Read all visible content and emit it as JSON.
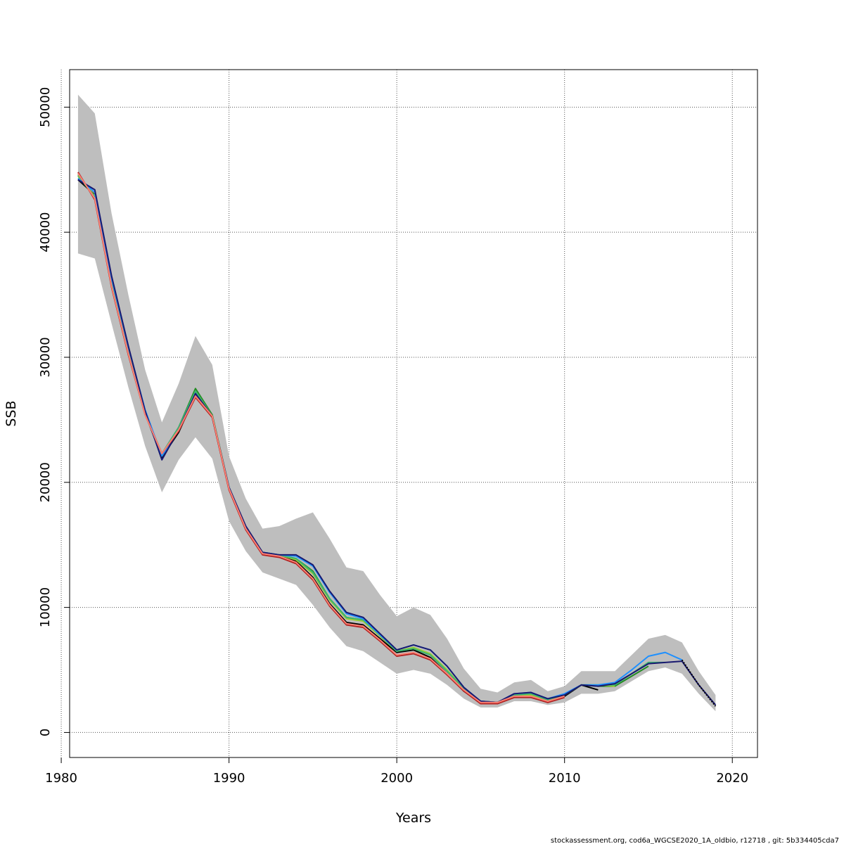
{
  "chart_data": {
    "type": "line",
    "title": "",
    "xlabel": "Years",
    "ylabel": "SSB",
    "xlim": [
      1980.5,
      2021.5
    ],
    "ylim": [
      -2000,
      53000
    ],
    "x_ticks": [
      1980,
      1990,
      2000,
      2010,
      2020
    ],
    "y_ticks": [
      0,
      10000,
      20000,
      30000,
      40000,
      50000
    ],
    "grid": true,
    "confidence_band": {
      "color": "#bebebe",
      "x": [
        1981,
        1982,
        1983,
        1984,
        1985,
        1986,
        1987,
        1988,
        1989,
        1990,
        1991,
        1992,
        1993,
        1994,
        1995,
        1996,
        1997,
        1998,
        1999,
        2000,
        2001,
        2002,
        2003,
        2004,
        2005,
        2006,
        2007,
        2008,
        2009,
        2010,
        2011,
        2012,
        2013,
        2014,
        2015,
        2016,
        2017,
        2018,
        2019
      ],
      "upper": [
        51000,
        49500,
        41500,
        35000,
        29000,
        24800,
        27900,
        31700,
        29400,
        22100,
        18700,
        16300,
        16500,
        17100,
        17600,
        15500,
        13200,
        12900,
        11000,
        9300,
        10000,
        9400,
        7500,
        5100,
        3500,
        3200,
        4000,
        4200,
        3300,
        3700,
        4900,
        4900,
        4900,
        6200,
        7500,
        7800,
        7200,
        4900,
        3000
      ],
      "lower": [
        38300,
        37900,
        32700,
        27600,
        22900,
        19200,
        21800,
        23600,
        21900,
        16900,
        14500,
        12800,
        12300,
        11800,
        10200,
        8400,
        6900,
        6500,
        5600,
        4700,
        5000,
        4700,
        3800,
        2700,
        2000,
        2000,
        2500,
        2500,
        2200,
        2400,
        3100,
        3100,
        3300,
        4100,
        4900,
        5200,
        4700,
        3100,
        1700
      ]
    },
    "series": [
      {
        "color": "#000000",
        "x": [
          1981,
          1982,
          1983,
          1984,
          1985,
          1986,
          1987,
          1988,
          1989,
          1990,
          1991,
          1992,
          1993,
          1994,
          1995,
          1996,
          1997,
          1998,
          1999,
          2000,
          2001,
          2002,
          2003,
          2004,
          2005,
          2006,
          2007,
          2008,
          2009,
          2010,
          2011,
          2012
        ],
        "values": [
          44200,
          43000,
          36000,
          30500,
          25500,
          22000,
          24000,
          27000,
          25200,
          19500,
          16300,
          14400,
          14100,
          13700,
          12400,
          10300,
          8800,
          8600,
          7500,
          6400,
          6600,
          6000,
          4700,
          3300,
          2400,
          2300,
          3000,
          3000,
          2500,
          2900,
          3800,
          3400
        ]
      },
      {
        "color": "#228b22",
        "x": [
          1981,
          1982,
          1983,
          1984,
          1985,
          1986,
          1987,
          1988,
          1989,
          1990,
          1991,
          1992,
          1993,
          1994,
          1995,
          1996,
          1997,
          1998,
          1999,
          2000,
          2001,
          2002,
          2003,
          2004,
          2005,
          2006,
          2007,
          2008,
          2009,
          2010,
          2011,
          2012,
          2013,
          2014,
          2015
        ],
        "values": [
          44500,
          42800,
          35800,
          30300,
          25500,
          22200,
          24400,
          27500,
          25400,
          19600,
          16400,
          14400,
          14200,
          13900,
          12900,
          10700,
          9200,
          9000,
          7800,
          6500,
          6700,
          6200,
          4900,
          3500,
          2500,
          2400,
          3000,
          3000,
          2600,
          3000,
          3800,
          3700,
          3700,
          4500,
          5300
        ]
      },
      {
        "color": "#9acd32",
        "x": [
          1981,
          1982,
          1983,
          1984,
          1985,
          1986,
          1987,
          1988,
          1989,
          1990,
          1991,
          1992,
          1993,
          1994,
          1995,
          1996,
          1997,
          1998,
          1999,
          2000,
          2001,
          2002,
          2003,
          2004,
          2005,
          2006,
          2007,
          2008,
          2009,
          2010,
          2011,
          2012,
          2013
        ],
        "values": [
          44500,
          42900,
          35900,
          30400,
          25600,
          22100,
          24300,
          27300,
          25300,
          19600,
          16400,
          14400,
          14200,
          13800,
          12700,
          10600,
          9100,
          8900,
          7700,
          6500,
          6800,
          6300,
          5000,
          3500,
          2500,
          2400,
          3000,
          3000,
          2600,
          3000,
          3800,
          3800,
          3700
        ]
      },
      {
        "color": "#3cb371",
        "x": [
          1981,
          1982,
          1983,
          1984,
          1985,
          1986,
          1987,
          1988,
          1989,
          1990,
          1991,
          1992,
          1993,
          1994,
          1995,
          1996,
          1997,
          1998,
          1999,
          2000,
          2001,
          2002,
          2003,
          2004,
          2005,
          2006,
          2007,
          2008,
          2009,
          2010,
          2011,
          2012,
          2013,
          2014,
          2015,
          2016
        ],
        "values": [
          44600,
          42800,
          35800,
          30300,
          25500,
          22300,
          24400,
          27300,
          25300,
          19600,
          16400,
          14400,
          14200,
          13900,
          12800,
          10700,
          9200,
          9000,
          7800,
          6500,
          6700,
          6200,
          4900,
          3500,
          2500,
          2400,
          3000,
          3100,
          2600,
          3000,
          3800,
          3800,
          3800,
          4700,
          5600,
          5600
        ]
      },
      {
        "color": "#1e90ff",
        "x": [
          1981,
          1982,
          1983,
          1984,
          1985,
          1986,
          1987,
          1988,
          1989,
          1990,
          1991,
          1992,
          1993,
          1994,
          1995,
          1996,
          1997,
          1998,
          1999,
          2000,
          2001,
          2002,
          2003,
          2004,
          2005,
          2006,
          2007,
          2008,
          2009,
          2010,
          2011,
          2012,
          2013,
          2014,
          2015,
          2016,
          2017
        ],
        "values": [
          44300,
          43200,
          36300,
          30800,
          25800,
          22100,
          24200,
          27100,
          25200,
          19600,
          16400,
          14400,
          14200,
          14100,
          13300,
          11200,
          9500,
          9100,
          7800,
          6600,
          7000,
          6600,
          5300,
          3600,
          2500,
          2400,
          3100,
          3200,
          2700,
          3100,
          3800,
          3800,
          4000,
          5000,
          6100,
          6400,
          5800
        ]
      },
      {
        "color": "#191970",
        "x": [
          1981,
          1982,
          1983,
          1984,
          1985,
          1986,
          1987,
          1988,
          1989,
          1990,
          1991,
          1992,
          1993,
          1994,
          1995,
          1996,
          1997,
          1998,
          1999,
          2000,
          2001,
          2002,
          2003,
          2004,
          2005,
          2006,
          2007,
          2008,
          2009,
          2010,
          2011,
          2012,
          2013,
          2014,
          2015,
          2016,
          2017,
          2018,
          2019
        ],
        "values": [
          44200,
          43400,
          36500,
          30900,
          25700,
          21800,
          24200,
          27100,
          25300,
          19600,
          16500,
          14400,
          14200,
          14200,
          13400,
          11300,
          9600,
          9200,
          7900,
          6600,
          7000,
          6600,
          5300,
          3600,
          2500,
          2400,
          3100,
          3200,
          2700,
          3000,
          3800,
          3700,
          3900,
          4700,
          5500,
          5600,
          5700,
          3800,
          2200
        ]
      },
      {
        "color": "#b22222",
        "x": [
          1981,
          1982,
          1983,
          1984,
          1985,
          1986,
          1987,
          1988,
          1989,
          1990,
          1991,
          1992,
          1993,
          1994,
          1995,
          1996,
          1997,
          1998,
          1999,
          2000,
          2001,
          2002,
          2003,
          2004,
          2005,
          2006,
          2007,
          2008,
          2009,
          2010
        ],
        "values": [
          44800,
          42600,
          35600,
          30200,
          25400,
          22300,
          24100,
          26800,
          25200,
          19400,
          16200,
          14200,
          14000,
          13500,
          12200,
          10100,
          8600,
          8400,
          7300,
          6100,
          6300,
          5800,
          4600,
          3300,
          2300,
          2300,
          2800,
          2800,
          2400,
          2800
        ]
      },
      {
        "color": "#fa8072",
        "x": [
          1981,
          1982,
          1983,
          1984,
          1985,
          1986,
          1987,
          1988,
          1989,
          1990,
          1991,
          1992,
          1993,
          1994,
          1995,
          1996,
          1997,
          1998,
          1999,
          2000,
          2001,
          2002,
          2003,
          2004,
          2005,
          2006,
          2007,
          2008,
          2009,
          2010
        ],
        "values": [
          44700,
          42700,
          35700,
          30300,
          25400,
          22300,
          24200,
          26900,
          25300,
          19500,
          16300,
          14300,
          14100,
          13600,
          12300,
          10200,
          8700,
          8500,
          7400,
          6200,
          6400,
          5900,
          4700,
          3400,
          2400,
          2400,
          2900,
          2900,
          2500,
          2900
        ]
      },
      {
        "color": "#000000",
        "dashed": true,
        "x": [
          2017,
          2018,
          2019
        ],
        "values": [
          5800,
          3800,
          2100
        ]
      }
    ]
  },
  "footer": {
    "text": "stockassessment.org, cod6a_WGCSE2020_1A_oldbio, r12718 , git: 5b334405cda7"
  }
}
